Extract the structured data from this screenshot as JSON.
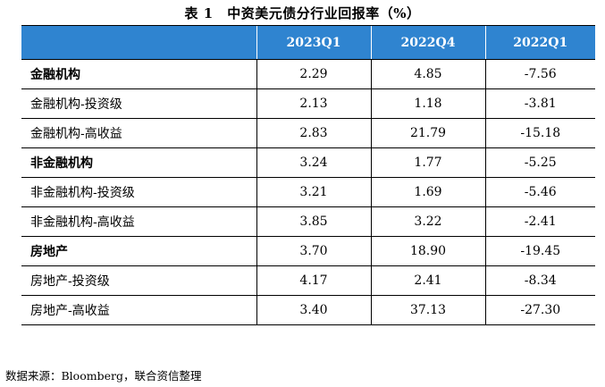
{
  "title": "表 1　中资美元债分行业回报率（%）",
  "columns": [
    "",
    "2023Q1",
    "2022Q4",
    "2022Q1"
  ],
  "rows": [
    {
      "label": "金融机构",
      "bold": true,
      "values": [
        "2.29",
        "4.85",
        "-7.56"
      ]
    },
    {
      "label": "金融机构-投资级",
      "bold": false,
      "values": [
        "2.13",
        "1.18",
        "-3.81"
      ]
    },
    {
      "label": "金融机构-高收益",
      "bold": false,
      "values": [
        "2.83",
        "21.79",
        "-15.18"
      ]
    },
    {
      "label": "非金融机构",
      "bold": true,
      "values": [
        "3.24",
        "1.77",
        "-5.25"
      ]
    },
    {
      "label": "非金融机构-投资级",
      "bold": false,
      "values": [
        "3.21",
        "1.69",
        "-5.46"
      ]
    },
    {
      "label": "非金融机构-高收益",
      "bold": false,
      "values": [
        "3.85",
        "3.22",
        "-2.41"
      ]
    },
    {
      "label": "房地产",
      "bold": true,
      "values": [
        "3.70",
        "18.90",
        "-19.45"
      ]
    },
    {
      "label": "房地产-投资级",
      "bold": false,
      "values": [
        "4.17",
        "2.41",
        "-8.34"
      ]
    },
    {
      "label": "房地产-高收益",
      "bold": false,
      "values": [
        "3.40",
        "37.13",
        "-27.30"
      ]
    }
  ],
  "source": "数据来源：Bloomberg，联合资信整理",
  "colors": {
    "header_bg": "#2f84d0",
    "header_text": "#ffffff"
  }
}
